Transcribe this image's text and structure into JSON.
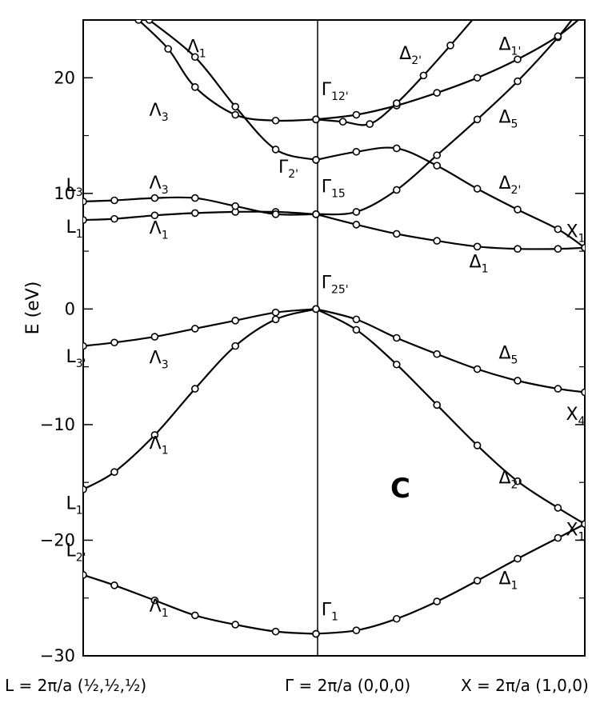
{
  "chart_data": {
    "type": "line",
    "title": "",
    "panel_label": "C",
    "ylabel": "E (eV)",
    "ylim": [
      -30,
      25
    ],
    "yticks": [
      {
        "value": 20,
        "label": "20"
      },
      {
        "value": 10,
        "label": "10"
      },
      {
        "value": 0,
        "label": "0"
      },
      {
        "value": -10,
        "label": "−10"
      },
      {
        "value": -20,
        "label": "−20"
      },
      {
        "value": -30,
        "label": "−30"
      }
    ],
    "xlim": [
      -0.866,
      1.0
    ],
    "xticks": [
      {
        "value": -0.866,
        "label": "L = 2π/a (½,½,½)"
      },
      {
        "value": 0,
        "label": "Γ = 2π/a (0,0,0)"
      },
      {
        "value": 1.0,
        "label": "X = 2π/a (1,0,0)"
      }
    ],
    "series": [
      {
        "x": [
          -0.866,
          -0.75,
          -0.6,
          -0.45,
          -0.3,
          -0.15,
          0
        ],
        "y": [
          -23,
          -23.9,
          -25.2,
          -26.5,
          -27.3,
          -27.9,
          -28.1
        ]
      },
      {
        "x": [
          0,
          0.15,
          0.3,
          0.45,
          0.6,
          0.75,
          0.9,
          1.0
        ],
        "y": [
          -28.1,
          -27.8,
          -26.8,
          -25.3,
          -23.5,
          -21.6,
          -19.8,
          -18.6
        ]
      },
      {
        "x": [
          -0.866,
          -0.75,
          -0.6,
          -0.45,
          -0.3,
          -0.15,
          0
        ],
        "y": [
          -15.6,
          -14.1,
          -10.9,
          -6.9,
          -3.2,
          -0.9,
          0
        ]
      },
      {
        "x": [
          0,
          0.15,
          0.3,
          0.45,
          0.6,
          0.75,
          0.9,
          1.0
        ],
        "y": [
          0,
          -1.8,
          -4.8,
          -8.3,
          -11.8,
          -14.9,
          -17.2,
          -18.6
        ]
      },
      {
        "x": [
          -0.866,
          -0.75,
          -0.6,
          -0.45,
          -0.3,
          -0.15,
          0
        ],
        "y": [
          -3.2,
          -2.9,
          -2.4,
          -1.7,
          -1.0,
          -0.3,
          0
        ]
      },
      {
        "x": [
          0,
          0.15,
          0.3,
          0.45,
          0.6,
          0.75,
          0.9,
          1.0
        ],
        "y": [
          0,
          -0.9,
          -2.5,
          -3.9,
          -5.2,
          -6.2,
          -6.9,
          -7.2
        ]
      },
      {
        "x": [
          -0.866,
          -0.75,
          -0.6,
          -0.45,
          -0.3,
          -0.15,
          0
        ],
        "y": [
          7.7,
          7.8,
          8.1,
          8.3,
          8.4,
          8.4,
          8.2
        ]
      },
      {
        "x": [
          0,
          0.15,
          0.3,
          0.45,
          0.6,
          0.75,
          0.9,
          1.0
        ],
        "y": [
          8.2,
          7.3,
          6.5,
          5.9,
          5.4,
          5.2,
          5.2,
          5.3
        ]
      },
      {
        "x": [
          -0.866,
          -0.75,
          -0.6,
          -0.45,
          -0.3,
          -0.15,
          0
        ],
        "y": [
          9.3,
          9.4,
          9.6,
          9.6,
          8.9,
          8.2,
          8.2
        ]
      },
      {
        "x": [
          0,
          0.15,
          0.3,
          0.45,
          0.6,
          0.75,
          0.9,
          1.0
        ],
        "y": [
          8.2,
          8.4,
          10.3,
          13.3,
          16.4,
          19.7,
          23.5,
          26.5
        ]
      },
      {
        "x": [
          -0.62,
          -0.45,
          -0.3,
          -0.15,
          0
        ],
        "y": [
          25,
          21.8,
          17.5,
          13.8,
          12.9
        ]
      },
      {
        "x": [
          0,
          0.15,
          0.3,
          0.45,
          0.6,
          0.75,
          0.9,
          1.0
        ],
        "y": [
          12.9,
          13.6,
          13.9,
          12.4,
          10.4,
          8.6,
          6.9,
          5.3
        ]
      },
      {
        "x": [
          -0.66,
          -0.55,
          -0.45,
          -0.3,
          -0.15,
          0
        ],
        "y": [
          25,
          22.5,
          19.2,
          16.8,
          16.3,
          16.4
        ]
      },
      {
        "x": [
          0,
          0.15,
          0.3,
          0.45,
          0.6,
          0.75,
          0.9,
          1.0
        ],
        "y": [
          16.4,
          16.8,
          17.6,
          18.7,
          20.0,
          21.6,
          23.6,
          25.5
        ]
      },
      {
        "x": [
          0,
          0.1,
          0.2,
          0.3,
          0.4,
          0.5,
          0.6
        ],
        "y": [
          16.4,
          16.2,
          16.0,
          17.8,
          20.2,
          22.8,
          25.5
        ]
      }
    ],
    "annotations": [
      {
        "x": -0.93,
        "y": 10.2,
        "base": "L",
        "sub": "3"
      },
      {
        "x": -0.93,
        "y": 6.6,
        "base": "L",
        "sub": "1"
      },
      {
        "x": -0.93,
        "y": -4.6,
        "base": "L",
        "sub": "3'"
      },
      {
        "x": -0.93,
        "y": -17.3,
        "base": "L",
        "sub": "1"
      },
      {
        "x": -0.93,
        "y": -21.4,
        "base": "L",
        "sub": "2'"
      },
      {
        "x": -0.48,
        "y": 22.2,
        "base": "Λ",
        "sub": "1"
      },
      {
        "x": -0.62,
        "y": 16.7,
        "base": "Λ",
        "sub": "3"
      },
      {
        "x": -0.62,
        "y": 10.4,
        "base": "Λ",
        "sub": "3"
      },
      {
        "x": -0.62,
        "y": 6.5,
        "base": "Λ",
        "sub": "1"
      },
      {
        "x": -0.62,
        "y": -4.7,
        "base": "Λ",
        "sub": "3"
      },
      {
        "x": -0.62,
        "y": -12.1,
        "base": "Λ",
        "sub": "1"
      },
      {
        "x": -0.62,
        "y": -26.2,
        "base": "Λ",
        "sub": "1"
      },
      {
        "x": 0.02,
        "y": 18.5,
        "base": "Γ",
        "sub": "12'"
      },
      {
        "x": -0.14,
        "y": 11.8,
        "base": "Γ",
        "sub": "2'"
      },
      {
        "x": 0.02,
        "y": 10.1,
        "base": "Γ",
        "sub": "15"
      },
      {
        "x": 0.02,
        "y": 1.8,
        "base": "Γ",
        "sub": "25'"
      },
      {
        "x": 0.02,
        "y": -26.5,
        "base": "Γ",
        "sub": "1"
      },
      {
        "x": 0.31,
        "y": 21.6,
        "base": "Δ",
        "sub": "2'"
      },
      {
        "x": 0.68,
        "y": 22.4,
        "base": "Δ",
        "sub": "1'"
      },
      {
        "x": 0.68,
        "y": 16.1,
        "base": "Δ",
        "sub": "5"
      },
      {
        "x": 0.68,
        "y": 10.4,
        "base": "Δ",
        "sub": "2'"
      },
      {
        "x": 0.93,
        "y": 6.2,
        "base": "X",
        "sub": "1"
      },
      {
        "x": 0.57,
        "y": 3.6,
        "base": "Δ",
        "sub": "1"
      },
      {
        "x": 0.68,
        "y": -4.3,
        "base": "Δ",
        "sub": "5"
      },
      {
        "x": 0.93,
        "y": -9.6,
        "base": "X",
        "sub": "4"
      },
      {
        "x": 0.68,
        "y": -15.1,
        "base": "Δ",
        "sub": "2'"
      },
      {
        "x": 0.93,
        "y": -19.6,
        "base": "X",
        "sub": "1"
      },
      {
        "x": 0.68,
        "y": -23.8,
        "base": "Δ",
        "sub": "1"
      }
    ]
  }
}
